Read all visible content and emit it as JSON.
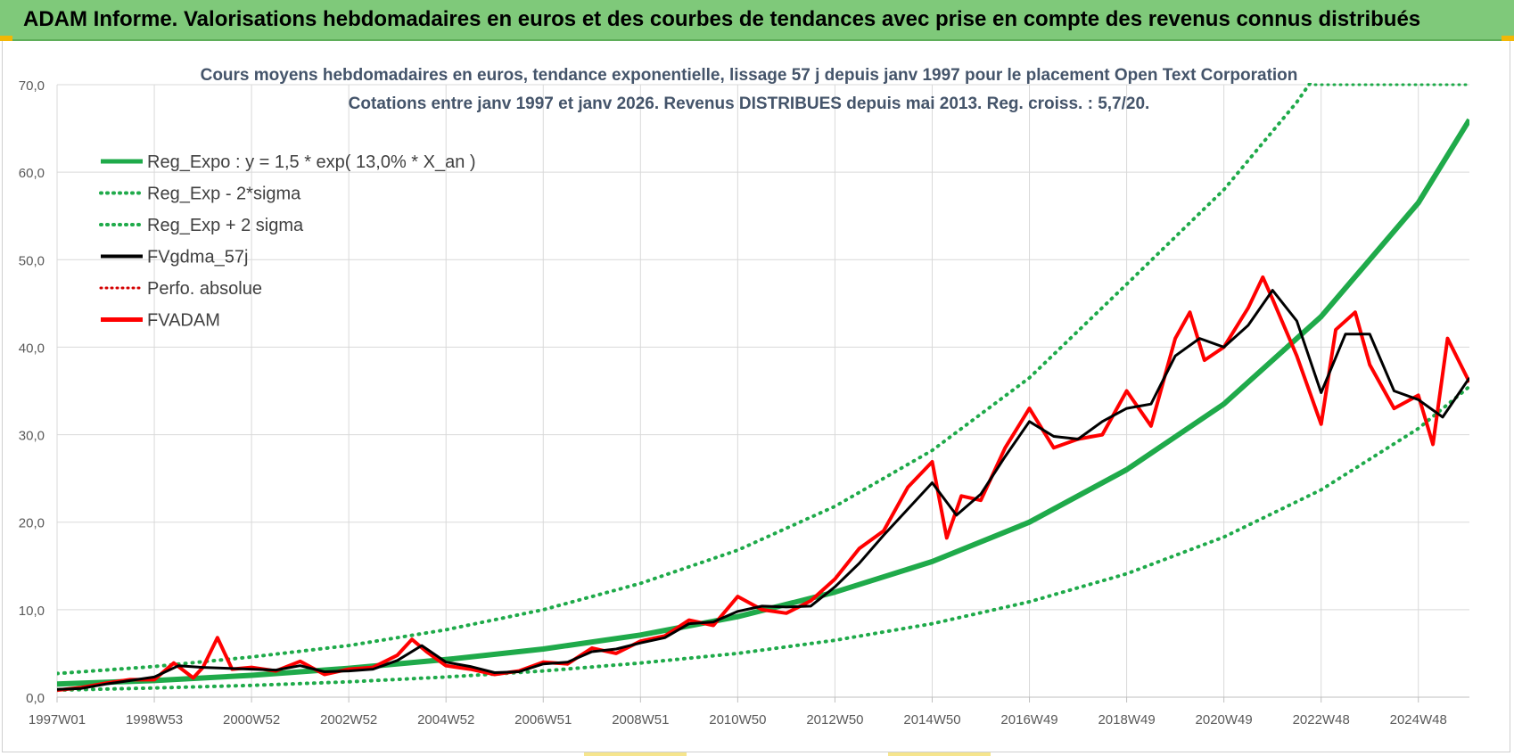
{
  "banner": {
    "title": "ADAM Informe. Valorisations hebdomadaires en euros et des courbes de tendances avec prise en compte des revenus connus distribués"
  },
  "colors": {
    "banner_bg": "#7fc97a",
    "reg_green": "#1faa4a",
    "fv_black": "#000000",
    "fvadam_red": "#ff0000",
    "perfo_red": "#d40000",
    "grid": "#d9d9d9",
    "axis_text": "#595959",
    "title_text": "#44546a"
  },
  "chart_data": {
    "type": "line",
    "title": "Cours moyens hebdomadaires en euros, tendance exponentielle, lissage 57 j depuis janv 1997 pour le placement Open Text Corporation",
    "subtitle": "Cotations entre janv 1997 et janv 2026. Revenus DISTRIBUES depuis mai 2013. Reg. croiss. : 5,7/20.",
    "xlabel": "",
    "ylabel": "",
    "xlim": [
      1997.0,
      2026.05
    ],
    "ylim": [
      0,
      70
    ],
    "y_ticks": [
      "0,0",
      "10,0",
      "20,0",
      "30,0",
      "40,0",
      "50,0",
      "60,0",
      "70,0"
    ],
    "y_tick_values": [
      0,
      10,
      20,
      30,
      40,
      50,
      60,
      70
    ],
    "x_tick_labels": [
      "1997W01",
      "1998W53",
      "2000W52",
      "2002W52",
      "2004W52",
      "2006W51",
      "2008W51",
      "2010W50",
      "2012W50",
      "2014W50",
      "2016W49",
      "2018W49",
      "2020W49",
      "2022W48",
      "2024W48"
    ],
    "x_tick_values": [
      1997.0,
      1999.0,
      2001.0,
      2003.0,
      2005.0,
      2007.0,
      2009.0,
      2011.0,
      2013.0,
      2015.0,
      2017.0,
      2019.0,
      2021.0,
      2023.0,
      2025.0
    ],
    "legend_position": "top-left",
    "legend": [
      {
        "label": "Reg_Expo : y = 1,5 * exp( 13,0% *  X_an )",
        "style": "solid-green"
      },
      {
        "label": "Reg_Exp - 2*sigma",
        "style": "dotted-green"
      },
      {
        "label": "Reg_Exp + 2 sigma",
        "style": "dotted-green"
      },
      {
        "label": "FVgdma_57j",
        "style": "solid-black"
      },
      {
        "label": "Perfo. absolue",
        "style": "dotted-red"
      },
      {
        "label": "FVADAM",
        "style": "solid-red"
      }
    ],
    "series": [
      {
        "name": "Reg_Expo",
        "x": [
          1997,
          1999,
          2001,
          2003,
          2005,
          2007,
          2009,
          2011,
          2013,
          2015,
          2017,
          2019,
          2021,
          2023,
          2025,
          2026.05
        ],
        "values": [
          1.5,
          1.9,
          2.5,
          3.3,
          4.3,
          5.5,
          7.1,
          9.2,
          12.0,
          15.5,
          20.0,
          26.0,
          33.5,
          43.5,
          56.5,
          66.0
        ]
      },
      {
        "name": "Reg_Exp - 2*sigma",
        "x": [
          1997,
          1999,
          2001,
          2003,
          2005,
          2007,
          2009,
          2011,
          2013,
          2015,
          2017,
          2019,
          2021,
          2023,
          2025,
          2026.05
        ],
        "values": [
          0.8,
          1.05,
          1.35,
          1.75,
          2.3,
          3.0,
          3.9,
          5.0,
          6.5,
          8.4,
          10.9,
          14.1,
          18.3,
          23.7,
          30.7,
          35.5
        ]
      },
      {
        "name": "Reg_Exp + 2 sigma",
        "x": [
          1997,
          1999,
          2001,
          2003,
          2005,
          2007,
          2009,
          2011,
          2013,
          2015,
          2017,
          2019,
          2021,
          2022.5,
          2023.0
        ],
        "values": [
          2.7,
          3.5,
          4.6,
          5.9,
          7.7,
          10.0,
          13.0,
          16.8,
          21.8,
          28.2,
          36.5,
          47.2,
          58.0,
          68.0,
          72.0
        ]
      },
      {
        "name": "FVgdma_57j",
        "x": [
          1997.0,
          1997.5,
          1998.0,
          1998.5,
          1999.0,
          1999.5,
          2000.0,
          2000.5,
          2001.0,
          2001.5,
          2002.0,
          2002.5,
          2003.0,
          2003.5,
          2004.0,
          2004.5,
          2005.0,
          2005.5,
          2006.0,
          2006.5,
          2007.0,
          2007.5,
          2008.0,
          2008.5,
          2009.0,
          2009.5,
          2010.0,
          2010.5,
          2011.0,
          2011.5,
          2012.0,
          2012.5,
          2013.0,
          2013.5,
          2014.0,
          2014.5,
          2015.0,
          2015.5,
          2016.0,
          2016.5,
          2017.0,
          2017.5,
          2018.0,
          2018.5,
          2019.0,
          2019.5,
          2020.0,
          2020.5,
          2021.0,
          2021.5,
          2022.0,
          2022.5,
          2023.0,
          2023.5,
          2024.0,
          2024.5,
          2025.0,
          2025.5,
          2026.05
        ],
        "values": [
          0.9,
          1.0,
          1.5,
          1.9,
          2.3,
          3.6,
          3.4,
          3.3,
          3.2,
          3.1,
          3.6,
          2.9,
          3.0,
          3.2,
          4.2,
          5.9,
          4.0,
          3.5,
          2.8,
          2.9,
          3.8,
          4.0,
          5.2,
          5.5,
          6.2,
          6.8,
          8.4,
          8.6,
          9.8,
          10.4,
          10.3,
          10.4,
          12.6,
          15.3,
          18.5,
          21.5,
          24.5,
          20.8,
          23.2,
          27.5,
          31.5,
          29.8,
          29.5,
          31.5,
          33.0,
          33.5,
          39.0,
          41.0,
          40.0,
          42.5,
          46.5,
          43.0,
          34.8,
          41.5,
          41.5,
          35.0,
          34.0,
          32.0,
          36.5
        ]
      },
      {
        "name": "FVADAM",
        "x": [
          1997.0,
          1997.5,
          1998.0,
          1998.5,
          1999.0,
          1999.4,
          1999.8,
          2000.0,
          2000.3,
          2000.6,
          2001.0,
          2001.5,
          2002.0,
          2002.5,
          2003.0,
          2003.5,
          2004.0,
          2004.3,
          2004.6,
          2005.0,
          2005.5,
          2006.0,
          2006.5,
          2007.0,
          2007.5,
          2008.0,
          2008.5,
          2009.0,
          2009.5,
          2010.0,
          2010.5,
          2011.0,
          2011.5,
          2012.0,
          2012.5,
          2013.0,
          2013.5,
          2014.0,
          2014.5,
          2015.0,
          2015.3,
          2015.6,
          2016.0,
          2016.5,
          2017.0,
          2017.5,
          2018.0,
          2018.5,
          2019.0,
          2019.5,
          2020.0,
          2020.3,
          2020.6,
          2021.0,
          2021.5,
          2021.8,
          2022.0,
          2022.5,
          2023.0,
          2023.3,
          2023.7,
          2024.0,
          2024.5,
          2025.0,
          2025.3,
          2025.6,
          2026.05
        ],
        "values": [
          0.8,
          1.1,
          1.6,
          2.0,
          2.0,
          3.9,
          2.2,
          3.4,
          6.8,
          3.2,
          3.4,
          3.0,
          4.1,
          2.6,
          3.2,
          3.4,
          4.8,
          6.6,
          5.2,
          3.6,
          3.2,
          2.6,
          3.0,
          4.0,
          3.8,
          5.6,
          5.0,
          6.4,
          7.0,
          8.8,
          8.2,
          11.5,
          10.0,
          9.6,
          11.0,
          13.5,
          17.0,
          19.0,
          24.0,
          26.9,
          18.2,
          23.0,
          22.5,
          28.5,
          33.0,
          28.5,
          29.5,
          30.0,
          35.0,
          31.0,
          41.0,
          44.0,
          38.5,
          40.0,
          44.5,
          48.0,
          45.5,
          39.0,
          31.2,
          42.0,
          44.0,
          38.0,
          33.0,
          34.5,
          28.9,
          41.0,
          36.0
        ]
      }
    ]
  }
}
